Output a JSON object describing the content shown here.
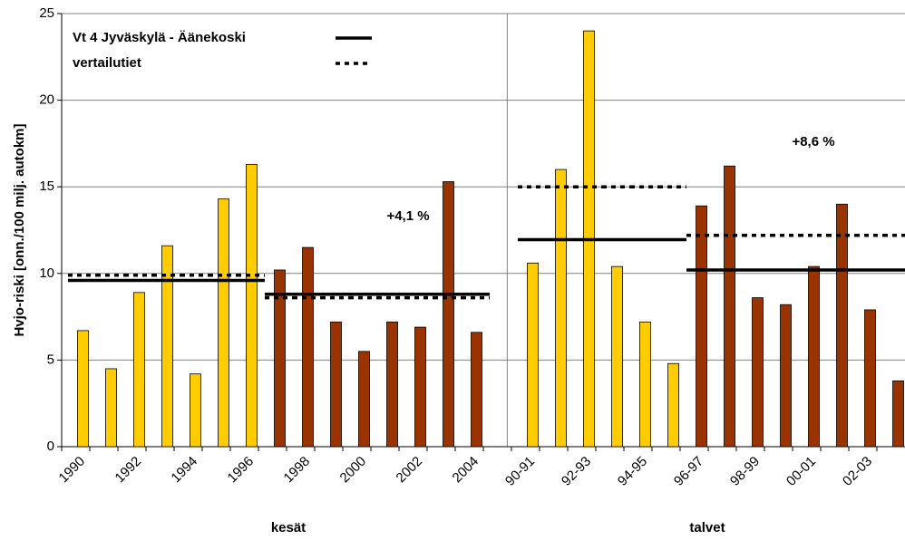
{
  "chart_data": {
    "type": "bar",
    "y_label": "Hvjo-riski [onn./100 milj. autokm]",
    "x_group_labels": [
      "kesät",
      "talvet"
    ],
    "annotations": [
      "+4,1 %",
      "+8,6 %"
    ],
    "categories": [
      "1990",
      null,
      "1992",
      null,
      "1994",
      null,
      "1996",
      null,
      "1998",
      null,
      "2000",
      null,
      "2002",
      null,
      "2004",
      null,
      "90-91",
      null,
      "92-93",
      null,
      "94-95",
      null,
      "96-97",
      null,
      "98-99",
      null,
      "00-01",
      null,
      "02-03",
      null
    ],
    "series": [
      {
        "color": "#ffcc00",
        "values": [
          6.7,
          4.5,
          8.9,
          11.6,
          4.2,
          14.3,
          16.3,
          null,
          null,
          null,
          null,
          null,
          null,
          null,
          null,
          null,
          10.6,
          16.0,
          24.0,
          10.4,
          7.2,
          4.8,
          null,
          null,
          null,
          null,
          null,
          null,
          null,
          null
        ]
      },
      {
        "color": "#993300",
        "values": [
          null,
          null,
          null,
          null,
          null,
          null,
          null,
          10.2,
          11.5,
          7.2,
          5.5,
          7.2,
          6.9,
          15.3,
          6.6,
          null,
          null,
          null,
          null,
          null,
          null,
          null,
          13.9,
          16.2,
          8.6,
          8.2,
          10.4,
          14.0,
          7.9,
          3.8
        ]
      }
    ],
    "lines": [
      {
        "name": "Vt 4 Jyväskylä - Äänekoski",
        "dashed": false,
        "color": "#000000",
        "values": [
          9.6,
          9.6,
          9.6,
          9.6,
          9.6,
          9.6,
          9.6,
          8.8,
          8.8,
          8.8,
          8.8,
          8.8,
          8.8,
          8.8,
          8.8,
          null,
          11.95,
          11.95,
          11.95,
          11.95,
          11.95,
          11.95,
          10.2,
          10.2,
          10.2,
          10.2,
          10.2,
          10.2,
          10.2,
          10.2
        ]
      },
      {
        "name": "vertailutiet",
        "dashed": true,
        "color": "#000000",
        "values": [
          9.9,
          9.9,
          9.9,
          9.9,
          9.9,
          9.9,
          9.9,
          8.6,
          8.6,
          8.6,
          8.6,
          8.6,
          8.6,
          8.6,
          8.6,
          null,
          15.0,
          15.0,
          15.0,
          15.0,
          15.0,
          15.0,
          12.2,
          12.2,
          12.2,
          12.2,
          12.2,
          12.2,
          12.2,
          12.2
        ]
      }
    ],
    "ylim": [
      0,
      25
    ],
    "yticks": [
      0,
      5,
      10,
      15,
      20,
      25
    ],
    "grid": true
  }
}
